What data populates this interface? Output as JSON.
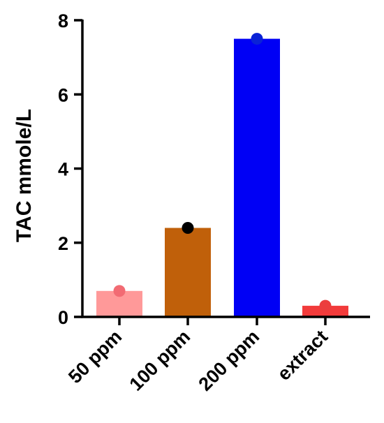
{
  "chart_data": {
    "type": "bar",
    "title": "",
    "xlabel": "",
    "ylabel": "TAC mmole/L",
    "ylim": [
      0,
      8
    ],
    "yticks": [
      0,
      2,
      4,
      6,
      8
    ],
    "categories": [
      "50 ppm",
      "100 ppm",
      "200 ppm",
      "extract"
    ],
    "values": [
      0.7,
      2.4,
      7.5,
      0.3
    ],
    "points": [
      0.7,
      2.4,
      7.5,
      0.3
    ],
    "bar_colors": [
      "#ff9999",
      "#c0600a",
      "#0000f5",
      "#f23b3b"
    ],
    "point_colors": [
      "#f26b73",
      "#000000",
      "#0a22d6",
      "#ec3d3d"
    ],
    "grid": false,
    "legend": "none"
  }
}
